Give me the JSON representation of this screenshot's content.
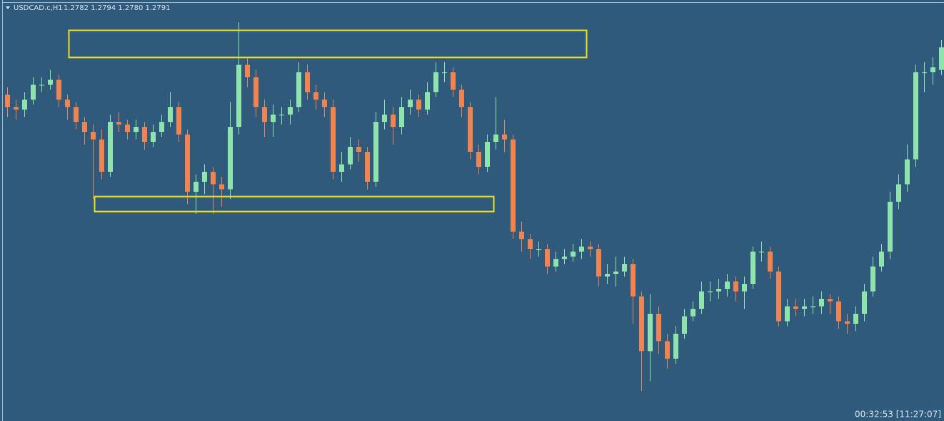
{
  "chart_data": {
    "type": "candlestick",
    "symbol": "USDCAD.c,H1",
    "quote": "1.2782 1.2794 1.2780 1.2791",
    "timer": "00:32:53 [11:27:07]",
    "up_color": "#8fe4ad",
    "down_color": "#ef8450",
    "ylim": [
      1.2641,
      1.281
    ],
    "open": [
      1.2772,
      1.2767,
      1.2766,
      1.277,
      1.2776,
      1.2776,
      1.2778,
      1.277,
      1.2767,
      1.2761,
      1.2757,
      1.2754,
      1.2741,
      1.2761,
      1.276,
      1.2757,
      1.2759,
      1.2753,
      1.2757,
      1.2761,
      1.2767,
      1.2756,
      1.2733,
      1.2737,
      1.2741,
      1.2736,
      1.2734,
      1.2759,
      1.2784,
      1.2779,
      1.2767,
      1.2761,
      1.2764,
      1.2764,
      1.2767,
      1.2781,
      1.2773,
      1.277,
      1.2767,
      1.2741,
      1.2744,
      1.2751,
      1.2749,
      1.2737,
      1.2761,
      1.2764,
      1.2759,
      1.2767,
      1.277,
      1.2766,
      1.2773,
      1.2781,
      1.2781,
      1.2774,
      1.2767,
      1.2749,
      1.2743,
      1.2753,
      1.2756,
      1.2754,
      1.2717,
      1.2714,
      1.271,
      1.271,
      1.2703,
      1.2706,
      1.2707,
      1.2709,
      1.2711,
      1.271,
      1.2699,
      1.27,
      1.2701,
      1.2704,
      1.2691,
      1.2669,
      1.2684,
      1.2673,
      1.2666,
      1.2676,
      1.2683,
      1.2686,
      1.2693,
      1.2693,
      1.2694,
      1.2697,
      1.2693,
      1.2696,
      1.2709,
      1.2709,
      1.2701,
      1.2681,
      1.2687,
      1.2686,
      1.2687,
      1.2687,
      1.269,
      1.2689,
      1.2681,
      1.268,
      1.2684,
      1.2693,
      1.2703,
      1.2709,
      1.2729,
      1.2736,
      1.2746,
      1.2781,
      1.2781,
      1.2782
    ],
    "high": [
      1.2775,
      1.277,
      1.2773,
      1.2779,
      1.2779,
      1.2782,
      1.278,
      1.2772,
      1.2769,
      1.2763,
      1.276,
      1.2758,
      1.2764,
      1.2765,
      1.2762,
      1.2762,
      1.2761,
      1.276,
      1.2764,
      1.2773,
      1.2769,
      1.2758,
      1.274,
      1.2744,
      1.2743,
      1.2739,
      1.2769,
      1.2801,
      1.2787,
      1.2782,
      1.277,
      1.2768,
      1.2767,
      1.277,
      1.2785,
      1.2784,
      1.2776,
      1.2773,
      1.277,
      1.2749,
      1.2755,
      1.2754,
      1.2751,
      1.2765,
      1.277,
      1.2767,
      1.2771,
      1.2774,
      1.2772,
      1.2777,
      1.2785,
      1.2785,
      1.2783,
      1.2776,
      1.2769,
      1.2752,
      1.2756,
      1.2771,
      1.2762,
      1.2756,
      1.2721,
      1.2716,
      1.2713,
      1.2712,
      1.2709,
      1.271,
      1.2712,
      1.2714,
      1.2713,
      1.2712,
      1.2704,
      1.2707,
      1.2707,
      1.2706,
      1.2693,
      1.2692,
      1.2687,
      1.2676,
      1.2679,
      1.2686,
      1.2689,
      1.2697,
      1.2697,
      1.2698,
      1.27,
      1.2699,
      1.2699,
      1.2711,
      1.2713,
      1.2711,
      1.2703,
      1.269,
      1.269,
      1.269,
      1.2691,
      1.2693,
      1.2692,
      1.2691,
      1.2684,
      1.2687,
      1.2696,
      1.2707,
      1.2712,
      1.2733,
      1.274,
      1.2752,
      1.2784,
      1.2785,
      1.2787,
      1.2794
    ],
    "low": [
      1.2763,
      1.2762,
      1.2763,
      1.2768,
      1.2773,
      1.2774,
      1.2767,
      1.2762,
      1.2758,
      1.2752,
      1.273,
      1.2738,
      1.2739,
      1.2757,
      1.2754,
      1.2754,
      1.275,
      1.2751,
      1.2755,
      1.2759,
      1.2753,
      1.2728,
      1.2724,
      1.2732,
      1.2724,
      1.2727,
      1.273,
      1.2756,
      1.2775,
      1.2763,
      1.2755,
      1.2755,
      1.276,
      1.276,
      1.2765,
      1.277,
      1.2766,
      1.2763,
      1.2738,
      1.2737,
      1.2742,
      1.2745,
      1.2734,
      1.2735,
      1.2758,
      1.2752,
      1.2756,
      1.2764,
      1.2763,
      1.2764,
      1.2771,
      1.2777,
      1.2771,
      1.2763,
      1.2746,
      1.274,
      1.2741,
      1.275,
      1.2749,
      1.2714,
      1.2709,
      1.2706,
      1.2707,
      1.27,
      1.2701,
      1.2704,
      1.2705,
      1.2706,
      1.2707,
      1.2695,
      1.2696,
      1.2695,
      1.2699,
      1.268,
      1.2653,
      1.2657,
      1.2668,
      1.2662,
      1.2664,
      1.2674,
      1.2681,
      1.2684,
      1.2689,
      1.269,
      1.2691,
      1.2689,
      1.2686,
      1.2694,
      1.2705,
      1.2698,
      1.2679,
      1.2679,
      1.2683,
      1.2683,
      1.2684,
      1.2684,
      1.2684,
      1.2678,
      1.2676,
      1.2677,
      1.2681,
      1.2691,
      1.2701,
      1.2706,
      1.2726,
      1.2733,
      1.2743,
      1.2773,
      1.2776,
      1.278
    ],
    "close": [
      1.2767,
      1.2766,
      1.277,
      1.2776,
      1.2776,
      1.2778,
      1.277,
      1.2767,
      1.2761,
      1.2757,
      1.2754,
      1.2741,
      1.2761,
      1.276,
      1.2757,
      1.2759,
      1.2753,
      1.2757,
      1.2761,
      1.2767,
      1.2756,
      1.2733,
      1.2737,
      1.2741,
      1.2736,
      1.2734,
      1.2759,
      1.2784,
      1.2779,
      1.2767,
      1.2761,
      1.2764,
      1.2764,
      1.2767,
      1.2781,
      1.2773,
      1.277,
      1.2767,
      1.2741,
      1.2744,
      1.2751,
      1.2749,
      1.2737,
      1.2761,
      1.2764,
      1.2759,
      1.2767,
      1.277,
      1.2766,
      1.2773,
      1.2781,
      1.2781,
      1.2774,
      1.2767,
      1.2749,
      1.2743,
      1.2753,
      1.2756,
      1.2754,
      1.2717,
      1.2714,
      1.271,
      1.271,
      1.2703,
      1.2706,
      1.2707,
      1.2709,
      1.2711,
      1.271,
      1.2699,
      1.27,
      1.2701,
      1.2704,
      1.2691,
      1.2669,
      1.2684,
      1.2673,
      1.2666,
      1.2676,
      1.2683,
      1.2686,
      1.2693,
      1.2693,
      1.2694,
      1.2697,
      1.2693,
      1.2696,
      1.2709,
      1.2709,
      1.2701,
      1.2681,
      1.2687,
      1.2686,
      1.2687,
      1.2687,
      1.269,
      1.2689,
      1.2681,
      1.268,
      1.2684,
      1.2693,
      1.2703,
      1.2709,
      1.2729,
      1.2736,
      1.2746,
      1.2781,
      1.2781,
      1.2783,
      1.2791
    ]
  }
}
